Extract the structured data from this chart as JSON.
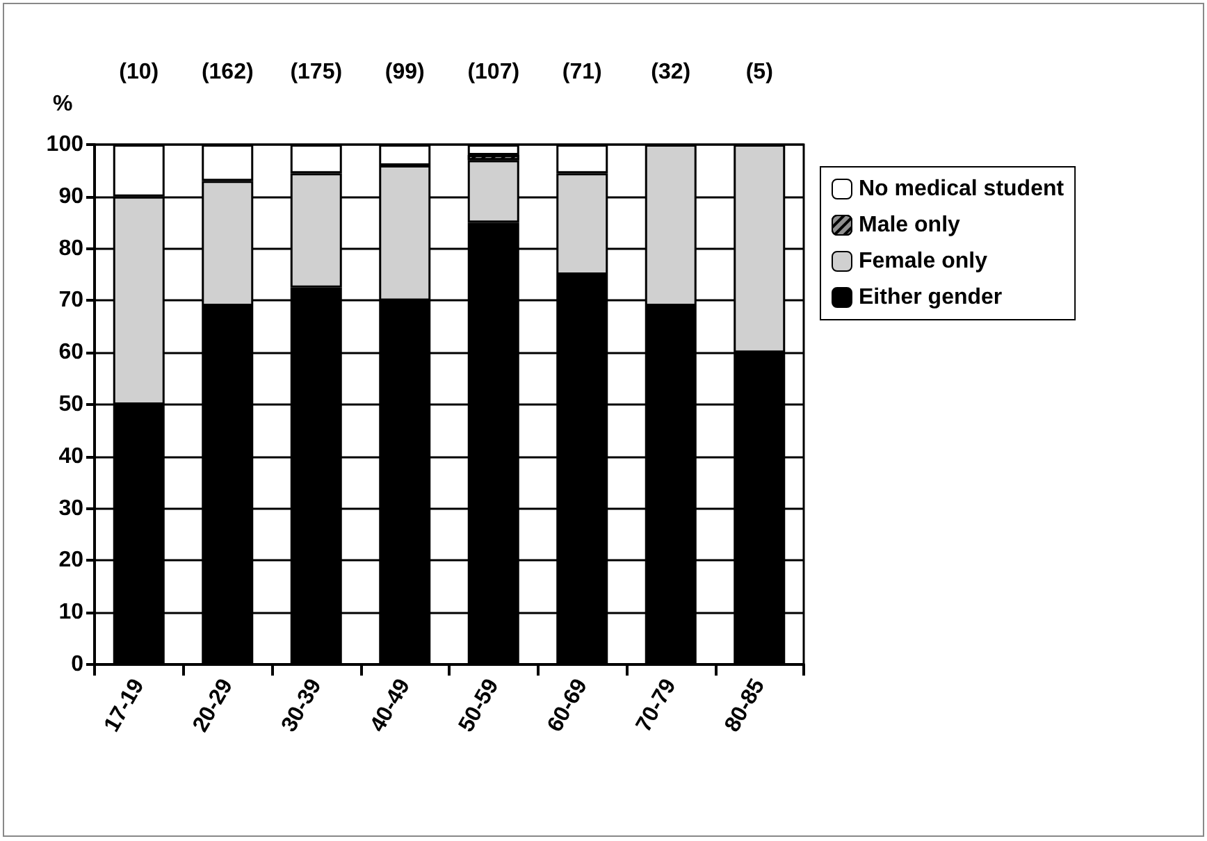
{
  "chart_data": {
    "type": "bar",
    "stacked": true,
    "ylabel": "%",
    "categories": [
      "17-19",
      "20-29",
      "30-39",
      "40-49",
      "50-59",
      "60-69",
      "70-79",
      "80-85"
    ],
    "series": [
      {
        "name": "Either gender",
        "color": "#000000",
        "values": [
          50,
          69,
          72.5,
          70,
          85,
          75,
          69,
          60
        ]
      },
      {
        "name": "Female only",
        "color": "#d0d0d0",
        "values": [
          40,
          24,
          22,
          26,
          12,
          19.5,
          31,
          40
        ]
      },
      {
        "name": "Male only",
        "color": "#909090",
        "values": [
          null,
          null,
          null,
          null,
          1,
          null,
          null,
          null
        ]
      },
      {
        "name": "No medical student",
        "color": "#ffffff",
        "values": [
          10,
          7,
          5.5,
          4,
          2,
          5.5,
          null,
          null
        ]
      }
    ],
    "ylim": [
      0,
      100
    ],
    "yticks": [
      0,
      10,
      20,
      30,
      40,
      50,
      60,
      70,
      80,
      90,
      100
    ],
    "grid": "y",
    "legend": "right",
    "annotations": [
      "(10)",
      "(162)",
      "(175)",
      "(99)",
      "(107)",
      "(71)",
      "(32)",
      "(5)"
    ]
  }
}
